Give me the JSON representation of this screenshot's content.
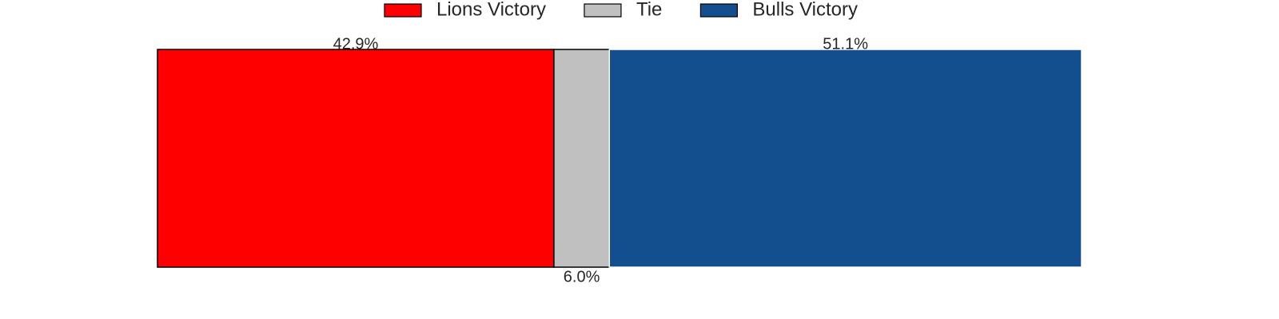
{
  "chart_data": {
    "type": "bar",
    "orientation": "horizontal",
    "stacked": true,
    "legend": "top",
    "series": [
      {
        "name": "Lions Victory",
        "color": "#ff0000",
        "edge": "#000000",
        "values": [
          42.9
        ],
        "value_labels": [
          "42.9%"
        ]
      },
      {
        "name": "Tie",
        "color": "#c0c0c0",
        "edge": "#000000",
        "values": [
          6.0
        ],
        "value_labels": [
          "6.0%"
        ]
      },
      {
        "name": "Bulls Victory",
        "color": "#134f8f",
        "edge": "#ffffff",
        "values": [
          51.1
        ],
        "value_labels": [
          "51.1%"
        ]
      }
    ]
  }
}
